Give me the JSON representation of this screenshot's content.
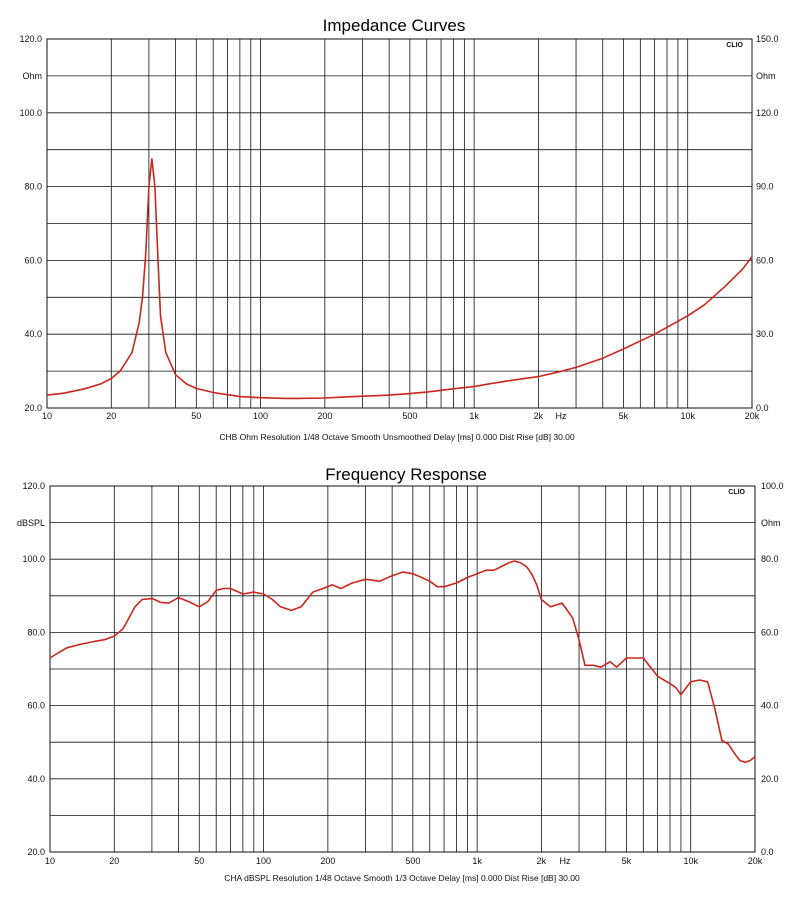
{
  "chart_data": [
    {
      "type": "line",
      "title": "Impedance Curves",
      "brand": "CLIO",
      "footer": "CHB Ohm Resolution 1/48 Octave Smooth Unsmoothed Delay [ms] 0.000 Dist Rise [dB] 30.00",
      "x_scale": "log",
      "xlim": [
        10,
        20000
      ],
      "ylim": [
        20,
        120
      ],
      "ylim_right": [
        0,
        150
      ],
      "left_unit": "Ohm",
      "right_unit": "Ohm",
      "x_unit": "Hz",
      "grid": true,
      "x_ticks": [
        {
          "v": 10,
          "t": "10"
        },
        {
          "v": 20,
          "t": "20"
        },
        {
          "v": 50,
          "t": "50"
        },
        {
          "v": 100,
          "t": "100"
        },
        {
          "v": 200,
          "t": "200"
        },
        {
          "v": 500,
          "t": "500"
        },
        {
          "v": 1000,
          "t": "1k"
        },
        {
          "v": 2000,
          "t": "2k"
        },
        {
          "v": 5000,
          "t": "5k"
        },
        {
          "v": 10000,
          "t": "10k"
        },
        {
          "v": 20000,
          "t": "20k"
        }
      ],
      "y_ticks_left": [
        {
          "v": 20,
          "t": "20.0"
        },
        {
          "v": 40,
          "t": "40.0"
        },
        {
          "v": 60,
          "t": "60.0"
        },
        {
          "v": 80,
          "t": "80.0"
        },
        {
          "v": 100,
          "t": "100.0"
        },
        {
          "v": 120,
          "t": "120.0"
        }
      ],
      "y_ticks_right": [
        {
          "v": 0,
          "t": "0.0"
        },
        {
          "v": 30,
          "t": "30.0"
        },
        {
          "v": 60,
          "t": "60.0"
        },
        {
          "v": 90,
          "t": "90.0"
        },
        {
          "v": 120,
          "t": "120.0"
        },
        {
          "v": 150,
          "t": "150.0"
        }
      ],
      "series_color": "#c8281e",
      "x": [
        10,
        12,
        15,
        18,
        20,
        22,
        25,
        27,
        28,
        29,
        30,
        31,
        32,
        33,
        34,
        36,
        40,
        45,
        50,
        60,
        70,
        80,
        100,
        130,
        150,
        200,
        250,
        300,
        400,
        500,
        600,
        700,
        800,
        1000,
        1200,
        1500,
        2000,
        2500,
        3000,
        4000,
        5000,
        7000,
        10000,
        12000,
        15000,
        18000,
        20000
      ],
      "y": [
        23.5,
        24.0,
        25.2,
        26.6,
        28.0,
        30.0,
        35.0,
        43.0,
        50.0,
        62.0,
        80.0,
        87.5,
        80.0,
        62.0,
        45.0,
        35.0,
        29.0,
        26.5,
        25.3,
        24.2,
        23.6,
        23.1,
        22.8,
        22.6,
        22.6,
        22.7,
        23.0,
        23.2,
        23.5,
        23.9,
        24.3,
        24.8,
        25.2,
        25.8,
        26.6,
        27.5,
        28.5,
        29.8,
        31.0,
        33.5,
        36.0,
        40.0,
        45.0,
        48.0,
        53.0,
        57.5,
        61.0
      ]
    },
    {
      "type": "line",
      "title": "Frequency Response",
      "brand": "CLIO",
      "footer": "CHA dBSPL Resolution 1/48 Octave Smooth 1/3 Octave Delay [ms] 0.000 Dist Rise [dB] 30.00",
      "x_scale": "log",
      "xlim": [
        10,
        20000
      ],
      "ylim": [
        20,
        120
      ],
      "ylim_right": [
        0,
        100
      ],
      "left_unit": "dBSPL",
      "right_unit": "Ohm",
      "x_unit": "Hz",
      "grid": true,
      "x_ticks": [
        {
          "v": 10,
          "t": "10"
        },
        {
          "v": 20,
          "t": "20"
        },
        {
          "v": 50,
          "t": "50"
        },
        {
          "v": 100,
          "t": "100"
        },
        {
          "v": 200,
          "t": "200"
        },
        {
          "v": 500,
          "t": "500"
        },
        {
          "v": 1000,
          "t": "1k"
        },
        {
          "v": 2000,
          "t": "2k"
        },
        {
          "v": 5000,
          "t": "5k"
        },
        {
          "v": 10000,
          "t": "10k"
        },
        {
          "v": 20000,
          "t": "20k"
        }
      ],
      "y_ticks_left": [
        {
          "v": 20,
          "t": "20.0"
        },
        {
          "v": 40,
          "t": "40.0"
        },
        {
          "v": 60,
          "t": "60.0"
        },
        {
          "v": 80,
          "t": "80.0"
        },
        {
          "v": 100,
          "t": "100.0"
        },
        {
          "v": 120,
          "t": "120.0"
        }
      ],
      "y_ticks_right": [
        {
          "v": 0,
          "t": "0.0"
        },
        {
          "v": 20,
          "t": "20.0"
        },
        {
          "v": 40,
          "t": "40.0"
        },
        {
          "v": 60,
          "t": "60.0"
        },
        {
          "v": 80,
          "t": "80.0"
        },
        {
          "v": 100,
          "t": "100.0"
        }
      ],
      "series_color": "#c8281e",
      "x": [
        10,
        11,
        12,
        14,
        16,
        18,
        20,
        22,
        25,
        27,
        30,
        33,
        36,
        40,
        45,
        50,
        55,
        60,
        65,
        70,
        80,
        90,
        100,
        110,
        120,
        135,
        150,
        170,
        190,
        210,
        230,
        260,
        300,
        350,
        400,
        450,
        500,
        550,
        600,
        650,
        700,
        800,
        900,
        1000,
        1100,
        1200,
        1300,
        1400,
        1500,
        1600,
        1700,
        1800,
        1900,
        2000,
        2200,
        2500,
        2800,
        3000,
        3200,
        3500,
        3800,
        4200,
        4500,
        5000,
        5500,
        6000,
        7000,
        8000,
        8500,
        9000,
        10000,
        11000,
        12000,
        13000,
        14000,
        15000,
        16000,
        17000,
        18000,
        19000,
        20000
      ],
      "y": [
        73.0,
        74.5,
        75.8,
        76.8,
        77.5,
        78.0,
        79.0,
        81.0,
        87.0,
        89.0,
        89.3,
        88.2,
        88.0,
        89.5,
        88.3,
        87.0,
        88.5,
        91.5,
        92.0,
        92.0,
        90.5,
        91.0,
        90.5,
        89.0,
        87.0,
        86.0,
        87.0,
        91.0,
        92.0,
        93.0,
        92.0,
        93.5,
        94.5,
        94.0,
        95.5,
        96.5,
        96.0,
        95.0,
        94.0,
        92.5,
        92.5,
        93.5,
        95.0,
        96.0,
        97.0,
        97.0,
        98.0,
        99.0,
        99.5,
        99.0,
        98.0,
        96.0,
        93.0,
        89.0,
        87.0,
        88.0,
        84.0,
        78.0,
        71.0,
        71.0,
        70.5,
        72.0,
        70.5,
        73.0,
        73.0,
        73.0,
        68.0,
        66.0,
        65.0,
        63.0,
        66.5,
        67.0,
        66.5,
        59.0,
        50.5,
        49.5,
        47.0,
        45.0,
        44.5,
        45.0,
        46.0
      ]
    }
  ]
}
